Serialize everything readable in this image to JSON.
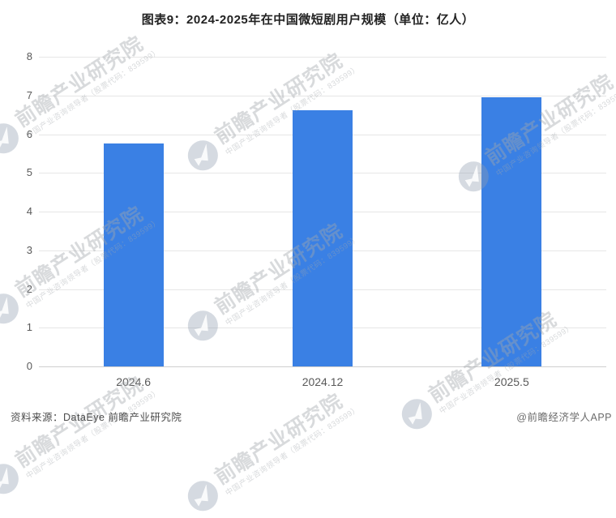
{
  "title": "图表9：2024-2025年在中国微短剧用户规模（单位：亿人）",
  "chart_data": {
    "type": "bar",
    "categories": [
      "2024.6",
      "2024.12",
      "2025.5"
    ],
    "values": [
      5.76,
      6.62,
      6.95
    ],
    "title": "图表9：2024-2025年在中国微短剧用户规模（单位：亿人）",
    "xlabel": "",
    "ylabel": "",
    "unit_label": "单位：亿人",
    "ylim": [
      0,
      8
    ],
    "y_ticks": [
      0,
      1,
      2,
      3,
      4,
      5,
      6,
      7,
      8
    ],
    "grid": true,
    "legend": "none",
    "bar_color": "#3A80E4"
  },
  "watermark": {
    "logo_icon": "qianzhan-logo-icon",
    "text": "前瞻产业研究院",
    "subtext": "中国产业咨询领导者（股票代码：839599）"
  },
  "footer": {
    "source": "资料来源：DataEye 前瞻产业研究院",
    "credit": "@前瞻经济学人APP"
  }
}
